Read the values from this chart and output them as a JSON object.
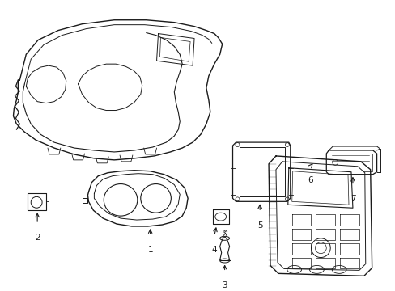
{
  "bg_color": "#ffffff",
  "line_color": "#1a1a1a",
  "fig_width": 4.89,
  "fig_height": 3.6,
  "dpi": 100,
  "label_fontsize": 7.5
}
